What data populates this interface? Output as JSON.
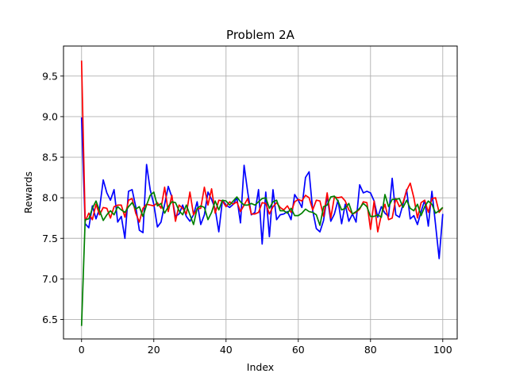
{
  "chart_data": {
    "type": "line",
    "title": "Problem 2A",
    "xlabel": "Index",
    "ylabel": "Rewards",
    "xlim": [
      -5,
      104
    ],
    "ylim": [
      6.26,
      9.87
    ],
    "xticks": [
      0,
      20,
      40,
      60,
      80,
      100
    ],
    "yticks": [
      6.5,
      7.0,
      7.5,
      8.0,
      8.5,
      9.0,
      9.5
    ],
    "ytick_labels": [
      "6.5",
      "7.0",
      "7.5",
      "8.0",
      "8.5",
      "9.0",
      "9.5"
    ],
    "grid": true,
    "series": [
      {
        "color": "#0000ff",
        "values": [
          8.99,
          7.68,
          7.63,
          7.9,
          7.74,
          7.87,
          8.22,
          8.06,
          7.97,
          8.1,
          7.7,
          7.77,
          7.5,
          8.08,
          8.1,
          7.89,
          7.6,
          7.57,
          8.41,
          8.1,
          7.92,
          7.64,
          7.7,
          7.92,
          8.14,
          8.01,
          7.77,
          7.8,
          7.91,
          7.77,
          7.71,
          7.79,
          7.95,
          7.67,
          7.79,
          8.07,
          7.98,
          7.86,
          7.58,
          7.97,
          7.91,
          7.88,
          7.92,
          8.0,
          7.69,
          8.4,
          8.07,
          7.79,
          7.82,
          8.1,
          7.43,
          8.07,
          7.52,
          8.1,
          7.73,
          7.79,
          7.8,
          7.83,
          7.73,
          8.04,
          7.97,
          7.88,
          8.25,
          8.32,
          7.84,
          7.62,
          7.58,
          7.72,
          8.02,
          7.71,
          7.8,
          7.97,
          7.68,
          7.92,
          7.71,
          7.8,
          7.7,
          8.16,
          8.06,
          8.08,
          8.06,
          7.96,
          7.76,
          7.89,
          7.81,
          7.77,
          8.24,
          7.79,
          7.76,
          7.92,
          8.1,
          7.74,
          7.78,
          7.67,
          7.83,
          7.97,
          7.65,
          8.08,
          7.67,
          7.25,
          7.8
        ]
      },
      {
        "color": "#ff0000",
        "values": [
          9.69,
          7.71,
          7.81,
          7.73,
          7.92,
          7.79,
          7.88,
          7.87,
          7.75,
          7.89,
          7.91,
          7.91,
          7.76,
          7.97,
          7.99,
          7.81,
          7.7,
          7.87,
          7.92,
          7.91,
          7.9,
          7.94,
          7.87,
          8.13,
          7.83,
          8.03,
          7.71,
          7.91,
          7.87,
          7.8,
          8.07,
          7.79,
          7.86,
          7.87,
          8.13,
          7.91,
          8.11,
          7.81,
          7.97,
          7.96,
          7.89,
          7.95,
          7.92,
          7.95,
          7.83,
          7.91,
          7.99,
          7.8,
          7.8,
          7.82,
          7.94,
          7.93,
          7.8,
          7.89,
          7.94,
          7.88,
          7.85,
          7.9,
          7.82,
          7.95,
          7.98,
          7.96,
          8.03,
          8.0,
          7.85,
          7.97,
          7.96,
          7.77,
          8.06,
          7.75,
          8.01,
          8.0,
          8.01,
          7.96,
          7.85,
          7.8,
          7.82,
          7.86,
          7.95,
          7.94,
          7.61,
          7.96,
          7.58,
          7.79,
          7.92,
          7.73,
          7.75,
          7.99,
          7.89,
          7.94,
          8.09,
          8.18,
          8.0,
          7.75,
          7.94,
          7.97,
          7.82,
          7.99,
          8.0,
          7.82,
          7.88
        ]
      },
      {
        "color": "#008000",
        "values": [
          6.42,
          7.73,
          7.74,
          7.87,
          7.96,
          7.84,
          7.72,
          7.79,
          7.84,
          7.79,
          7.89,
          7.85,
          7.82,
          7.89,
          7.94,
          7.86,
          7.89,
          7.77,
          7.91,
          8.03,
          8.07,
          7.9,
          7.93,
          7.81,
          7.89,
          7.95,
          7.94,
          7.84,
          7.79,
          7.91,
          7.79,
          7.67,
          7.87,
          7.9,
          7.88,
          7.73,
          7.82,
          7.96,
          7.85,
          7.97,
          7.96,
          7.91,
          7.96,
          8.01,
          7.95,
          7.91,
          7.91,
          7.93,
          7.91,
          7.95,
          7.99,
          8.0,
          7.87,
          7.95,
          7.97,
          7.84,
          7.84,
          7.81,
          7.87,
          7.78,
          7.78,
          7.81,
          7.86,
          7.83,
          7.82,
          7.79,
          7.66,
          7.89,
          7.91,
          8.01,
          8.02,
          7.96,
          7.85,
          7.87,
          7.93,
          7.8,
          7.83,
          7.87,
          7.93,
          7.89,
          7.77,
          7.77,
          7.79,
          7.76,
          8.04,
          7.89,
          7.98,
          7.98,
          7.99,
          7.88,
          7.97,
          7.87,
          7.84,
          7.92,
          7.78,
          7.89,
          7.96,
          7.92,
          7.81,
          7.84,
          7.88
        ]
      }
    ]
  }
}
